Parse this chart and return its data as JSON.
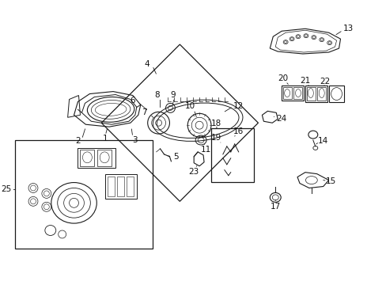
{
  "background_color": "#ffffff",
  "fig_width": 4.89,
  "fig_height": 3.6,
  "dpi": 100,
  "line_color": "#1a1a1a",
  "label_fontsize": 7.5,
  "label_color": "#111111"
}
